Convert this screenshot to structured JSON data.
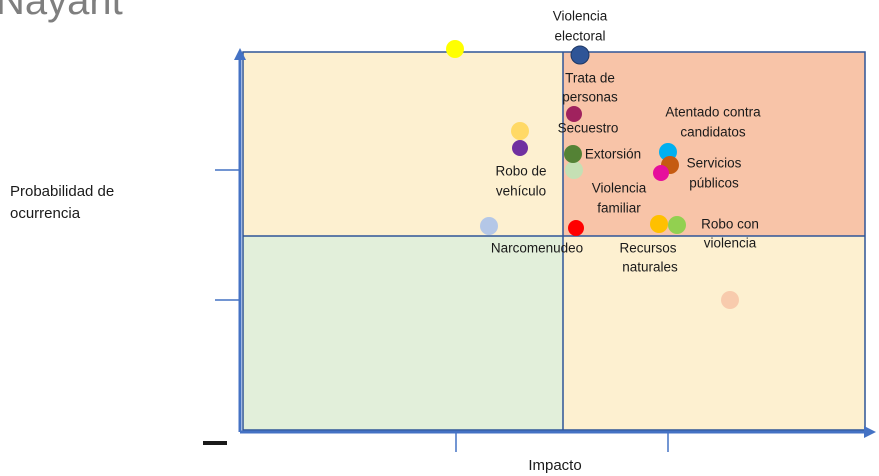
{
  "header": {
    "title": "Nayarit"
  },
  "axes": {
    "y_label": [
      "Probabilidad de",
      "ocurrencia"
    ],
    "x_label": "Impacto"
  },
  "risks": [
    {
      "label": [
        "Violencia",
        "electoral"
      ]
    },
    {
      "label": [
        "Trata de",
        "personas"
      ]
    },
    {
      "label": [
        "Secuestro"
      ]
    },
    {
      "label": [
        "Atentado contra",
        "candidatos"
      ]
    },
    {
      "label": [
        "Extorsión"
      ]
    },
    {
      "label": [
        "Servicios",
        "públicos"
      ]
    },
    {
      "label": [
        "Robo de",
        "vehículo"
      ]
    },
    {
      "label": [
        "Violencia",
        "familiar"
      ]
    },
    {
      "label": [
        "Narcomenudeo"
      ]
    },
    {
      "label": [
        "Robo con",
        "violencia"
      ]
    },
    {
      "label": [
        "Recursos",
        "naturales"
      ]
    }
  ]
}
